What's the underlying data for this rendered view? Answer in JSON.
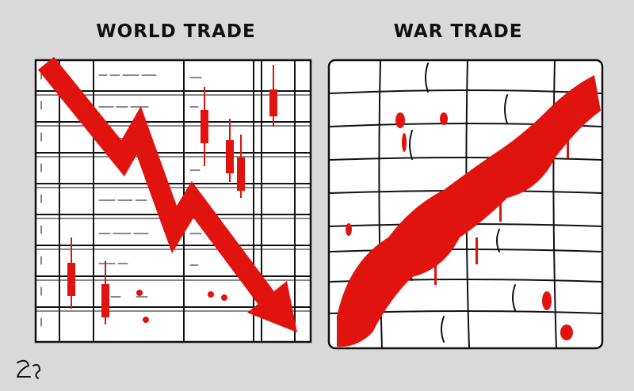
{
  "panels": [
    {
      "title": "WORLD TRADE"
    },
    {
      "title": "WAR TRADE"
    }
  ]
}
